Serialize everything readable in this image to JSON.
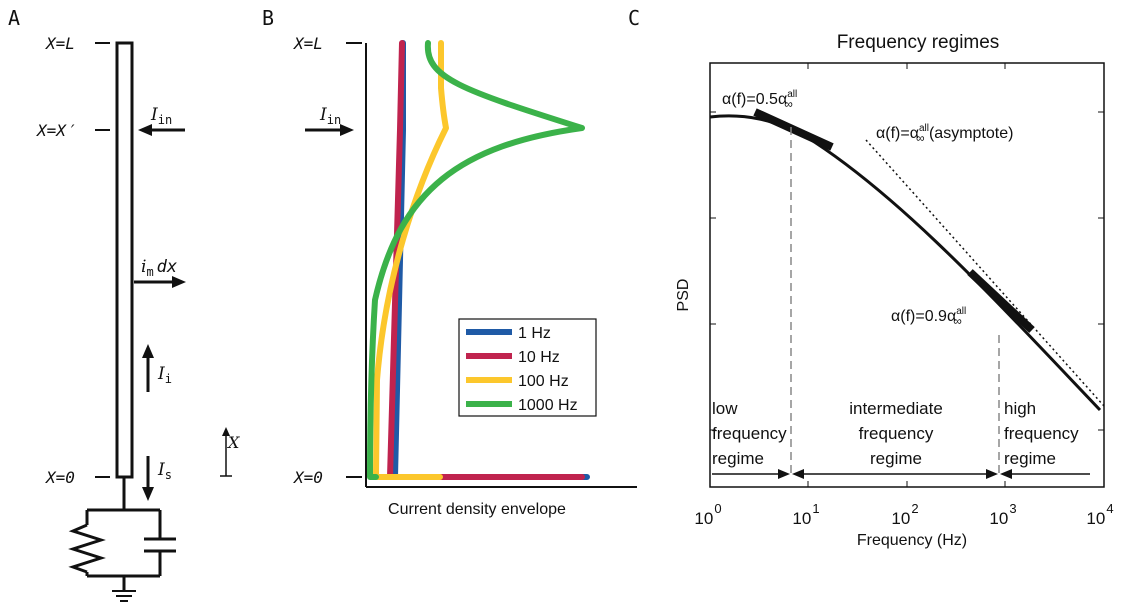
{
  "panel_a": {
    "panel_label": "A",
    "labels": {
      "x_eq_L": "X=L",
      "x_eq_Xprime": "X=X′",
      "x_eq_0": "X=0",
      "i_in": "I",
      "i_in_sub": "in",
      "i_m": "i",
      "i_m_sub": "m",
      "i_m_dx": "dx",
      "i_i": "I",
      "i_i_sub": "i",
      "i_s": "I",
      "i_s_sub": "s",
      "x_axis": "X"
    }
  },
  "panel_b": {
    "panel_label": "B",
    "labels": {
      "x_eq_L": "X=L",
      "x_eq_0": "X=0",
      "i_in": "I",
      "i_in_sub": "in",
      "xlabel": "Current density envelope"
    },
    "legend": [
      {
        "label": "1 Hz",
        "color": "#1f5aa6"
      },
      {
        "label": "10 Hz",
        "color": "#c0234e"
      },
      {
        "label": "100 Hz",
        "color": "#fcc72c"
      },
      {
        "label": "1000 Hz",
        "color": "#3bb24a"
      }
    ]
  },
  "panel_c": {
    "panel_label": "C",
    "title": "Frequency regimes",
    "ylabel": "PSD",
    "xlabel": "Frequency (Hz)",
    "xticks": [
      {
        "base": "10",
        "exp": "0"
      },
      {
        "base": "10",
        "exp": "1"
      },
      {
        "base": "10",
        "exp": "2"
      },
      {
        "base": "10",
        "exp": "3"
      },
      {
        "base": "10",
        "exp": "4"
      }
    ],
    "annotations": {
      "a05_lead": "α(f)=0.5α",
      "a09_lead": "α(f)=0.9α",
      "asym_lead": "α(f)=α",
      "asym_tail": " (asymptote)",
      "sup": "all",
      "sub": "∞"
    },
    "regimes": [
      {
        "line1": "low",
        "line2": "frequency",
        "line3": "regime"
      },
      {
        "line1": "intermediate",
        "line2": "frequency",
        "line3": "regime"
      },
      {
        "line1": "high",
        "line2": "frequency",
        "line3": "regime"
      }
    ]
  }
}
